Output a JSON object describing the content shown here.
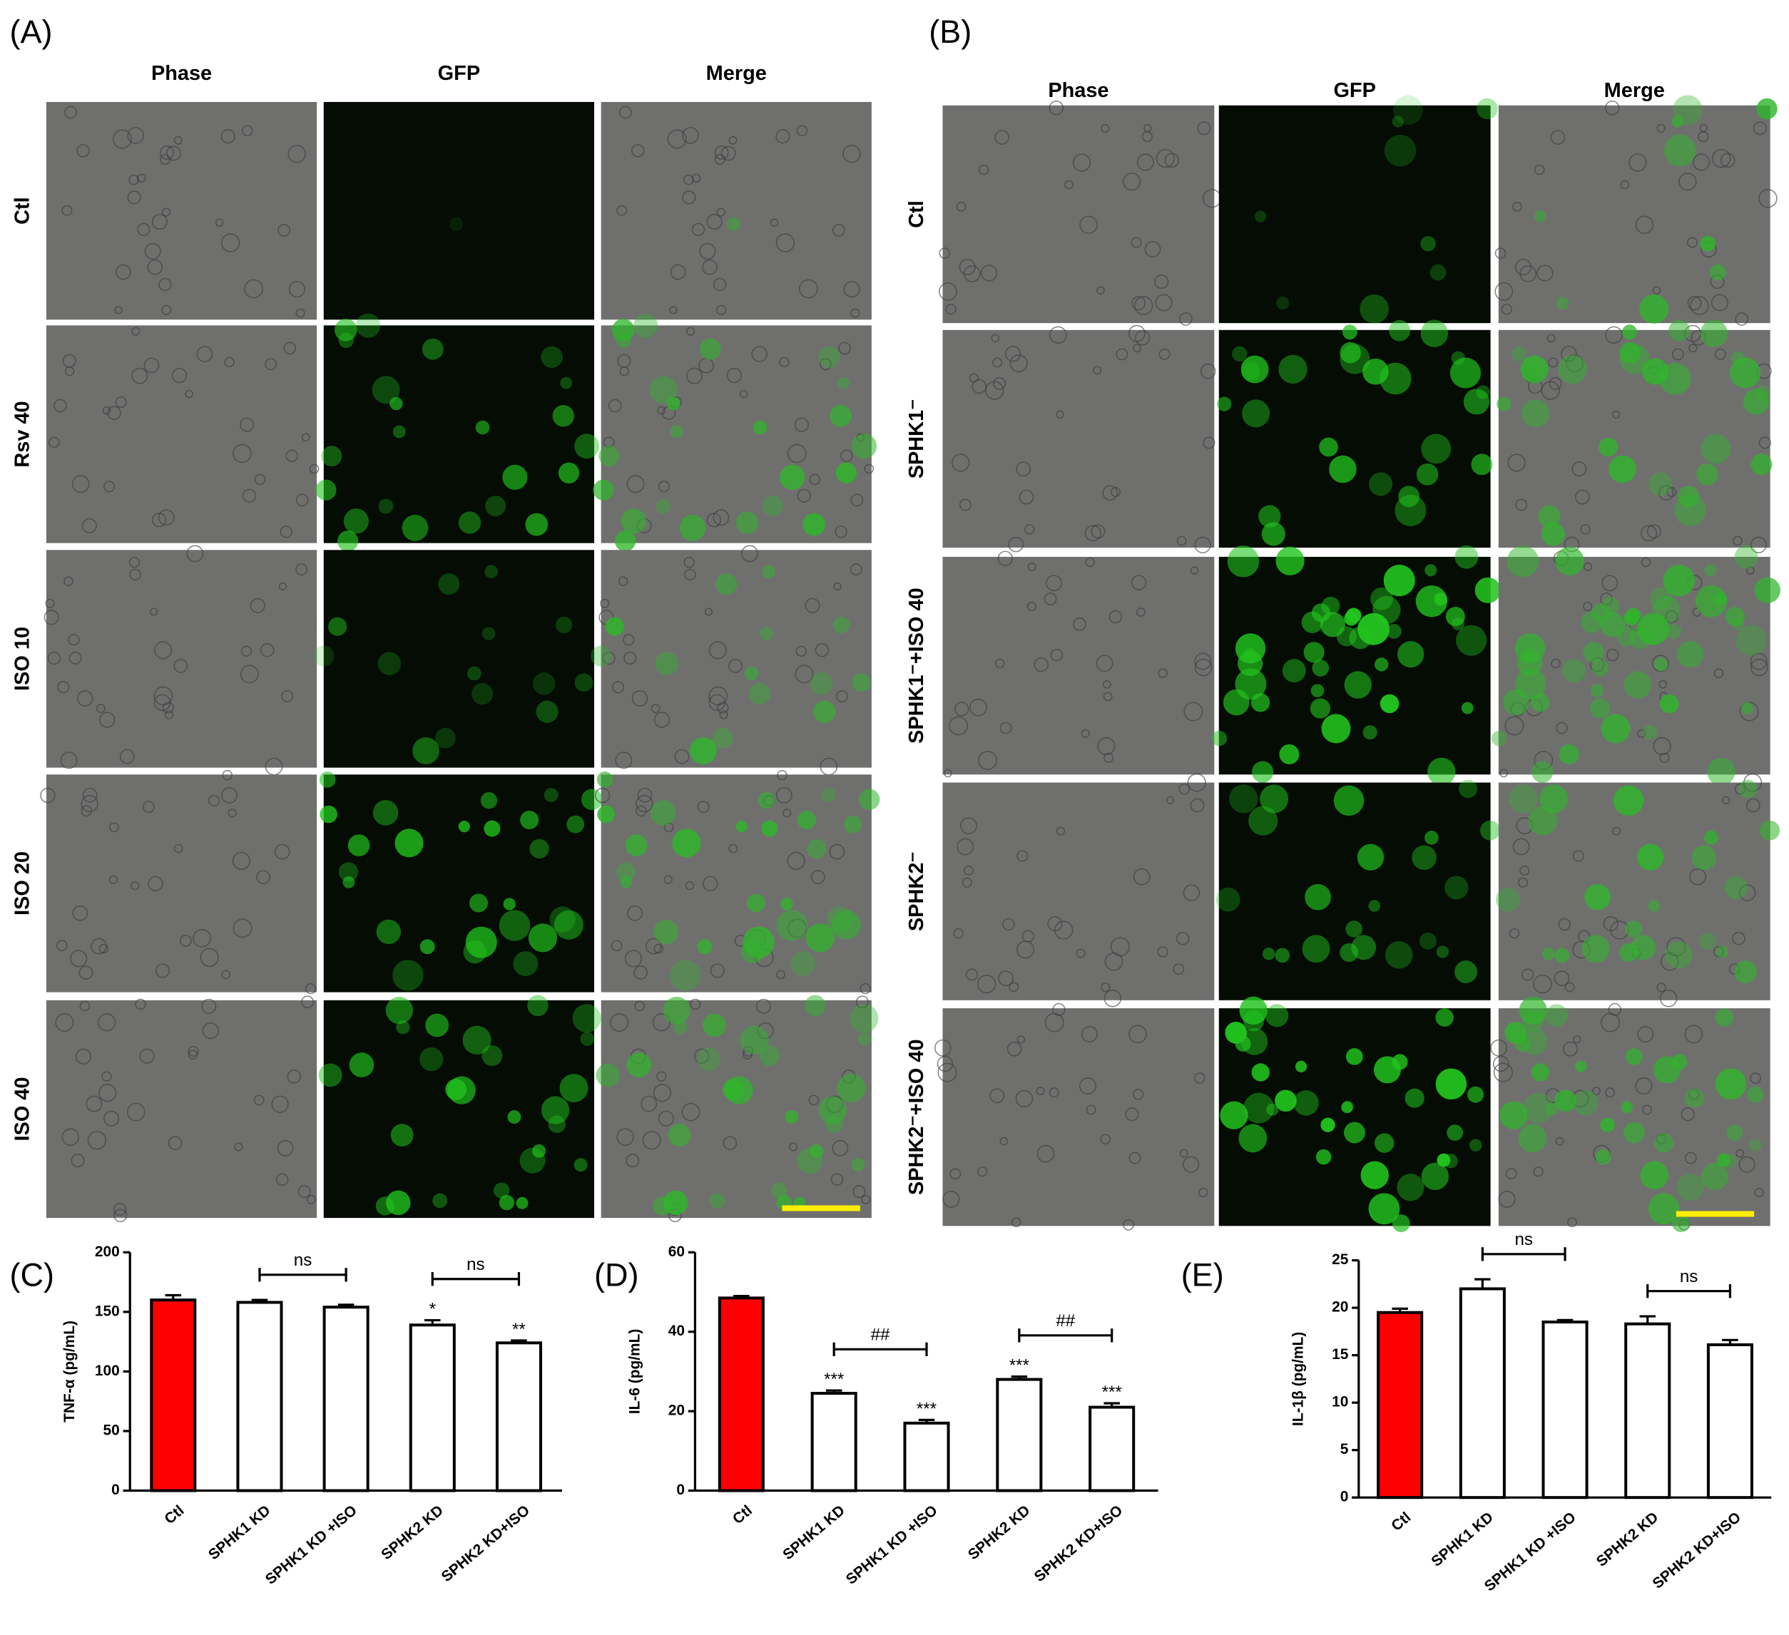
{
  "panels": [
    {
      "label": "(A)",
      "columns": [
        "Phase",
        "GFP",
        "Merge"
      ],
      "rows": [
        "Ctl",
        "Rsv 40",
        "ISO 10",
        "ISO 20",
        "ISO 40"
      ]
    },
    {
      "label": "(B)",
      "columns": [
        "Phase",
        "GFP",
        "Merge"
      ],
      "rows": [
        "Ctl",
        "SPHK1⁻",
        "SPHK1⁻+ISO 40",
        "SPHK2⁻",
        "SPHK2⁻+ISO 40"
      ]
    }
  ],
  "chart_data": [
    {
      "type": "bar",
      "title": "(C)",
      "y_label": "TNF-α (pg/mL)",
      "categories": [
        "Ctl",
        "SPHK1 KD",
        "SPHK1 KD +ISO",
        "SPHK2 KD",
        "SPHK2 KD+ISO"
      ],
      "values": [
        160,
        158,
        154,
        139,
        124
      ],
      "errors": [
        4,
        2,
        2,
        4,
        2
      ],
      "colors": [
        "#ff0000",
        "#ffffff",
        "#ffffff",
        "#ffffff",
        "#ffffff"
      ],
      "value_annotations": [
        null,
        null,
        null,
        "*",
        "**"
      ],
      "comparisons": [
        {
          "label": "ns",
          "between": [
            "SPHK1 KD",
            "SPHK1 KD +ISO"
          ]
        },
        {
          "label": "ns",
          "between": [
            "SPHK2 KD",
            "SPHK2 KD+ISO"
          ]
        }
      ],
      "ylim": [
        0,
        200
      ],
      "yticks": [
        0,
        50,
        100,
        150,
        200
      ]
    },
    {
      "type": "bar",
      "title": "(D)",
      "y_label": "IL-6 (pg/mL)",
      "categories": [
        "Ctl",
        "SPHK1 KD",
        "SPHK1 KD +ISO",
        "SPHK2 KD",
        "SPHK2 KD+ISO"
      ],
      "values": [
        48.5,
        24.5,
        17,
        28,
        21
      ],
      "errors": [
        0.5,
        0.7,
        0.8,
        0.7,
        1
      ],
      "colors": [
        "#ff0000",
        "#ffffff",
        "#ffffff",
        "#ffffff",
        "#ffffff"
      ],
      "value_annotations": [
        null,
        "***",
        "***",
        "***",
        "***"
      ],
      "comparisons": [
        {
          "label": "##",
          "between": [
            "SPHK1 KD",
            "SPHK1 KD +ISO"
          ]
        },
        {
          "label": "##",
          "between": [
            "SPHK2 KD",
            "SPHK2 KD+ISO"
          ]
        }
      ],
      "ylim": [
        0,
        60
      ],
      "yticks": [
        0,
        20,
        40,
        60
      ]
    },
    {
      "type": "bar",
      "title": "(E)",
      "y_label": "IL-1β (pg/mL)",
      "categories": [
        "Ctl",
        "SPHK1 KD",
        "SPHK1 KD +ISO",
        "SPHK2 KD",
        "SPHK2 KD+ISO"
      ],
      "values": [
        19.5,
        22,
        18.5,
        18.3,
        16.1
      ],
      "errors": [
        0.4,
        1,
        0.2,
        0.8,
        0.5
      ],
      "colors": [
        "#ff0000",
        "#ffffff",
        "#ffffff",
        "#ffffff",
        "#ffffff"
      ],
      "value_annotations": [
        null,
        null,
        null,
        null,
        null
      ],
      "comparisons": [
        {
          "label": "ns",
          "between": [
            "SPHK1 KD",
            "SPHK1 KD +ISO"
          ]
        },
        {
          "label": "ns",
          "between": [
            "SPHK2 KD",
            "SPHK2 KD+ISO"
          ]
        }
      ],
      "ylim": [
        0,
        25
      ],
      "yticks": [
        0,
        5,
        10,
        15,
        20,
        25
      ]
    }
  ]
}
